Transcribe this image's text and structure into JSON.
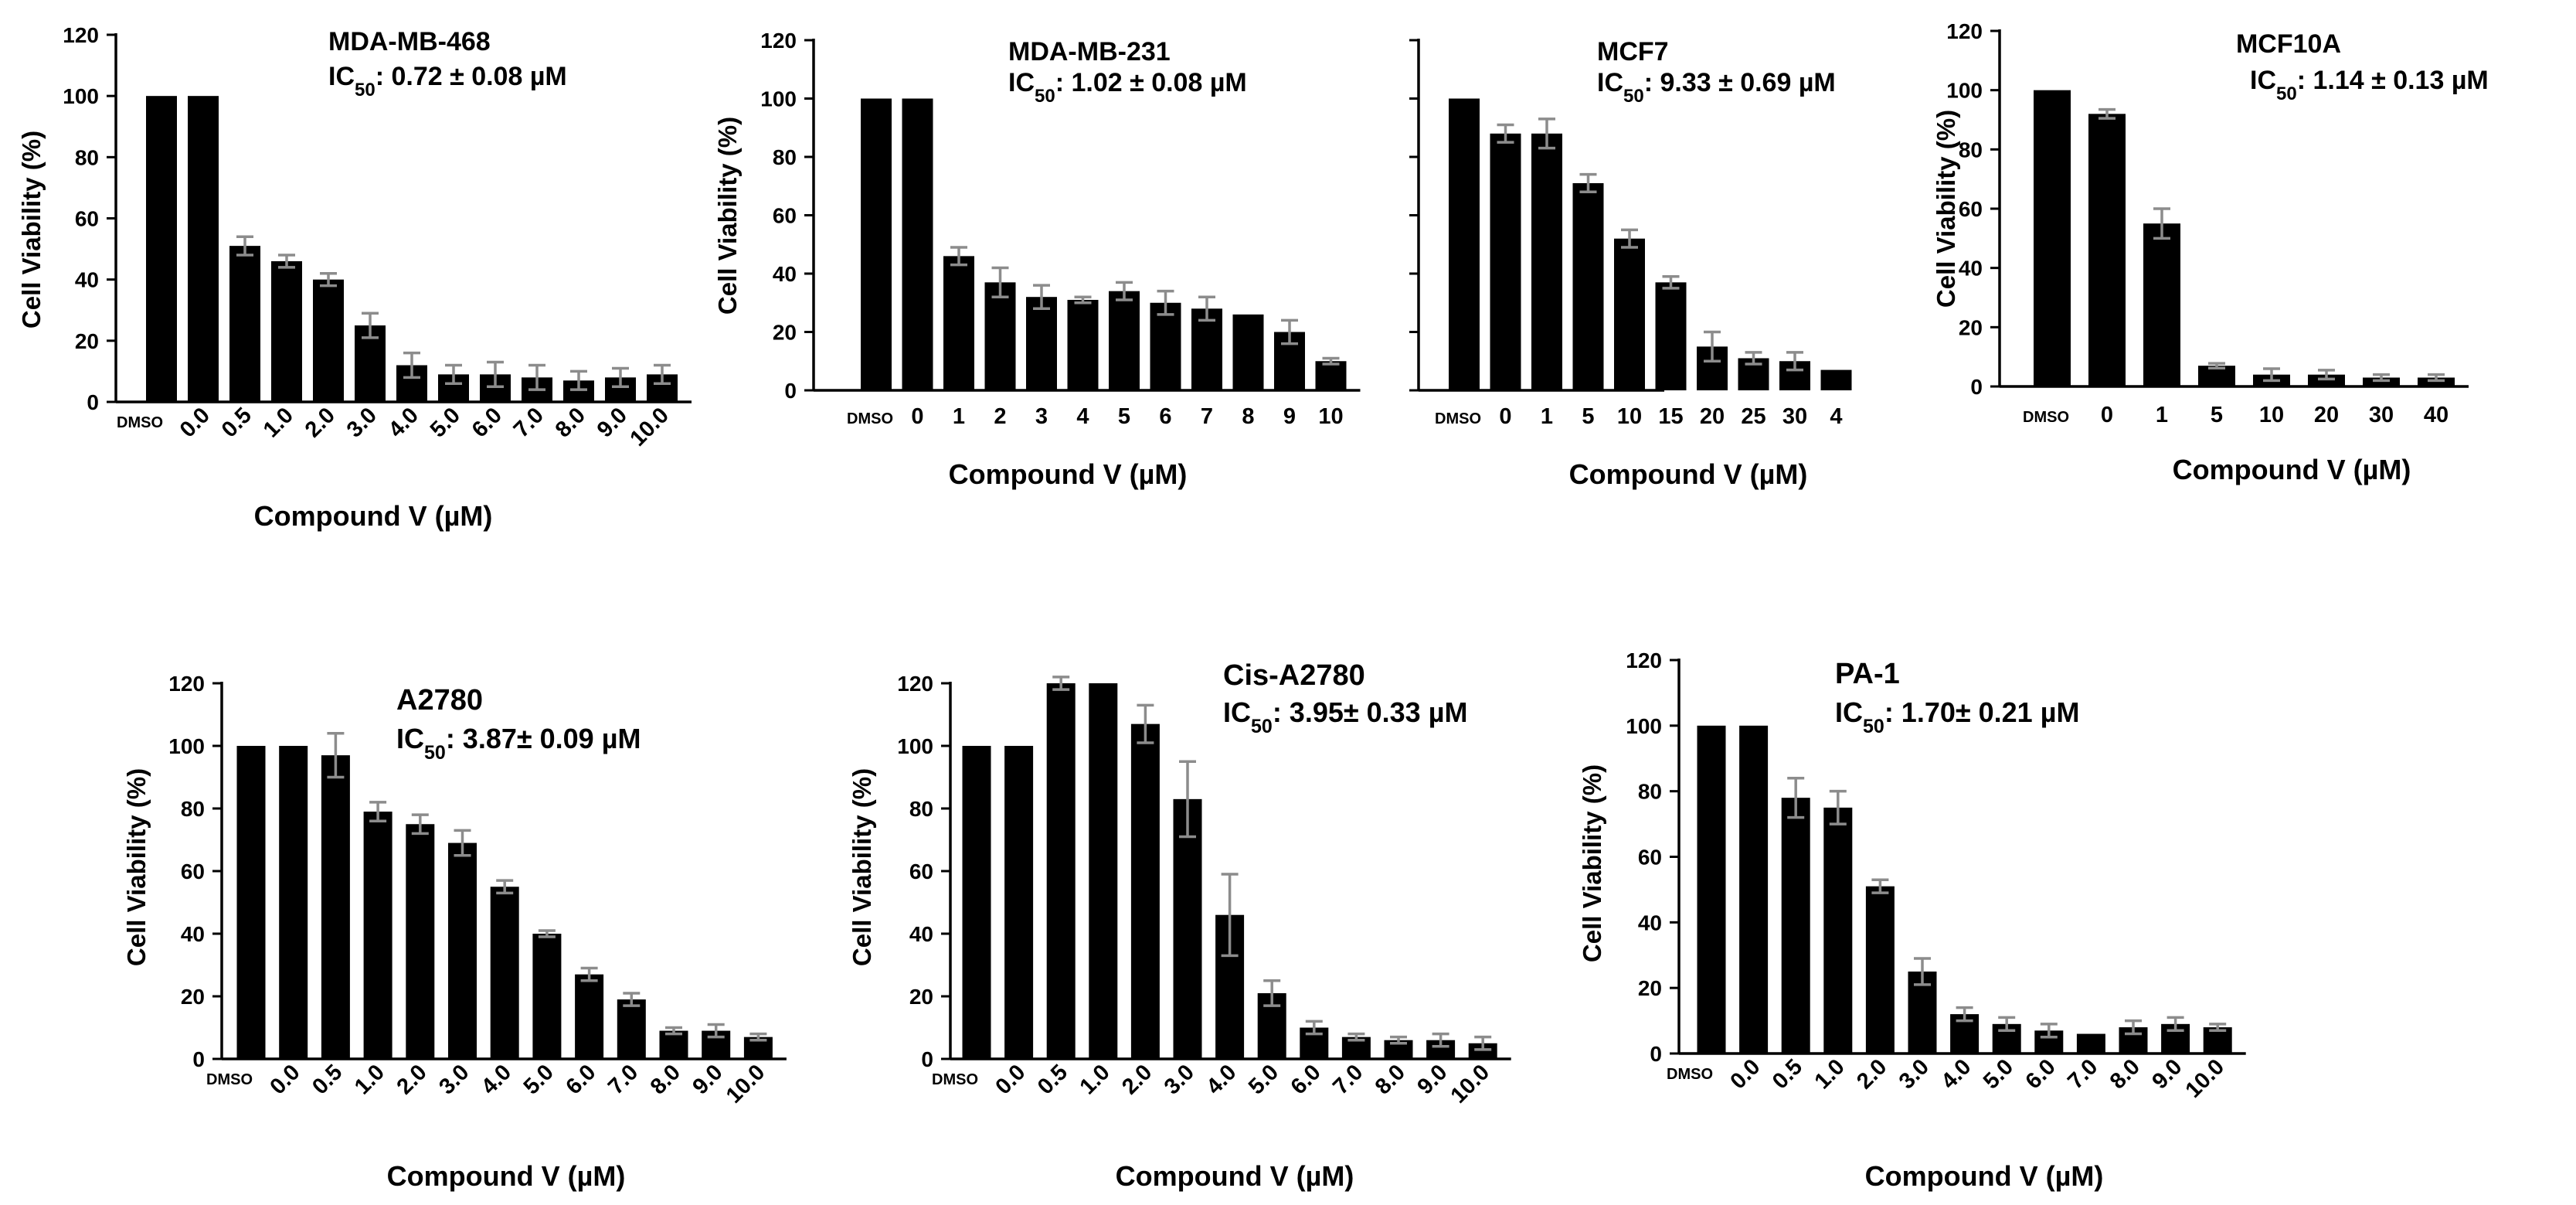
{
  "chart_data": [
    {
      "type": "bar",
      "title": "MDA-MB-468",
      "ic50": {
        "label": "IC",
        "sub": "50",
        "value": ": 0.72 ± 0.08 µM"
      },
      "xlabel": "Compound V (µM)",
      "ylabel": "Cell Viability (%)",
      "ylim": [
        0,
        120
      ],
      "yticks": [
        "0",
        "20",
        "40",
        "60",
        "80",
        "100",
        "120"
      ],
      "categories": [
        "DMSO",
        "0.0",
        "0.5",
        "1.0",
        "2.0",
        "3.0",
        "4.0",
        "5.0",
        "6.0",
        "7.0",
        "8.0",
        "9.0",
        "10.0"
      ],
      "values": [
        100,
        100,
        51,
        46,
        40,
        25,
        12,
        9,
        9,
        8,
        7,
        8,
        9
      ],
      "errors": [
        0,
        0,
        3,
        2,
        2,
        4,
        4,
        3,
        4,
        4,
        3,
        3,
        3
      ]
    },
    {
      "type": "bar",
      "title": "MDA-MB-231",
      "ic50": {
        "label": "IC",
        "sub": "50",
        "value": ": 1.02 ± 0.08 µM"
      },
      "xlabel": "Compound V (µM)",
      "ylabel": "Cell Viability (%)",
      "ylim": [
        0,
        120
      ],
      "yticks": [
        "0",
        "20",
        "40",
        "60",
        "80",
        "100",
        "120"
      ],
      "categories": [
        "DMSO",
        "0",
        "1",
        "2",
        "3",
        "4",
        "5",
        "6",
        "7",
        "8",
        "9",
        "10"
      ],
      "values": [
        100,
        100,
        46,
        37,
        32,
        31,
        34,
        30,
        28,
        26,
        20,
        10
      ],
      "errors": [
        0,
        0,
        3,
        5,
        4,
        1,
        3,
        4,
        4,
        0,
        4,
        1
      ]
    },
    {
      "type": "bar",
      "title": "MCF7",
      "ic50": {
        "label": "IC",
        "sub": "50",
        "value": ": 9.33 ± 0.69 µM"
      },
      "xlabel": "Compound V (µM)",
      "ylabel": "",
      "ylim": [
        0,
        120
      ],
      "yticks": [],
      "categories": [
        "DMSO",
        "0",
        "1",
        "5",
        "10",
        "15",
        "20",
        "25",
        "30",
        "4"
      ],
      "values": [
        100,
        88,
        88,
        71,
        52,
        37,
        15,
        11,
        10,
        7
      ],
      "errors": [
        0,
        3,
        5,
        3,
        3,
        2,
        5,
        2,
        3,
        0
      ]
    },
    {
      "type": "bar",
      "title": "MCF10A",
      "ic50": {
        "label": "IC",
        "sub": "50",
        "value": ": 1.14 ± 0.13 µM"
      },
      "xlabel": "Compound V (µM)",
      "ylabel": "Cell Viability (%)",
      "ylim": [
        0,
        120
      ],
      "yticks": [
        "0",
        "20",
        "40",
        "60",
        "80",
        "100",
        "120"
      ],
      "categories": [
        "DMSO",
        "0",
        "1",
        "5",
        "10",
        "20",
        "30",
        "40"
      ],
      "values": [
        100,
        92,
        55,
        7,
        4,
        4,
        3,
        3
      ],
      "errors": [
        0,
        1.5,
        5,
        0.8,
        2,
        1.5,
        1,
        1
      ]
    },
    {
      "type": "bar",
      "title": "A2780",
      "ic50": {
        "label": "IC",
        "sub": "50",
        "value": ": 3.87± 0.09 µM"
      },
      "xlabel": "Compound V (µM)",
      "ylabel": "Cell Viability (%)",
      "ylim": [
        0,
        120
      ],
      "yticks": [
        "0",
        "20",
        "40",
        "60",
        "80",
        "100",
        "120"
      ],
      "categories": [
        "DMSO",
        "0.0",
        "0.5",
        "1.0",
        "2.0",
        "3.0",
        "4.0",
        "5.0",
        "6.0",
        "7.0",
        "8.0",
        "9.0",
        "10.0"
      ],
      "values": [
        100,
        100,
        97,
        79,
        75,
        69,
        55,
        40,
        27,
        19,
        9,
        9,
        7
      ],
      "errors": [
        0,
        0,
        7,
        3,
        3,
        4,
        2,
        1,
        2,
        2,
        1,
        2,
        1
      ]
    },
    {
      "type": "bar",
      "title": "Cis-A2780",
      "ic50": {
        "label": "IC",
        "sub": "50",
        "value": ": 3.95± 0.33 µM"
      },
      "xlabel": "Compound V (µM)",
      "ylabel": "Cell Viability (%)",
      "ylim": [
        0,
        120
      ],
      "yticks": [
        "0",
        "20",
        "40",
        "60",
        "80",
        "100",
        "120"
      ],
      "categories": [
        "DMSO",
        "0.0",
        "0.5",
        "1.0",
        "2.0",
        "3.0",
        "4.0",
        "5.0",
        "6.0",
        "7.0",
        "8.0",
        "9.0",
        "10.0"
      ],
      "values": [
        100,
        100,
        120,
        120,
        107,
        83,
        46,
        21,
        10,
        7,
        6,
        6,
        5
      ],
      "errors": [
        0,
        0,
        2,
        0,
        6,
        12,
        13,
        4,
        2,
        1,
        1,
        2,
        2
      ]
    },
    {
      "type": "bar",
      "title": "PA-1",
      "ic50": {
        "label": "IC",
        "sub": "50",
        "value": ": 1.70± 0.21 µM"
      },
      "xlabel": "Compound V (µM)",
      "ylabel": "Cell Viability (%)",
      "ylim": [
        0,
        120
      ],
      "yticks": [
        "0",
        "20",
        "40",
        "60",
        "80",
        "100",
        "120"
      ],
      "categories": [
        "DMSO",
        "0.0",
        "0.5",
        "1.0",
        "2.0",
        "3.0",
        "4.0",
        "5.0",
        "6.0",
        "7.0",
        "8.0",
        "9.0",
        "10.0"
      ],
      "values": [
        100,
        100,
        78,
        75,
        51,
        25,
        12,
        9,
        7,
        6,
        8,
        9,
        8
      ],
      "errors": [
        0,
        0,
        6,
        5,
        2,
        4,
        2,
        2,
        2,
        0,
        2,
        2,
        1
      ]
    }
  ]
}
